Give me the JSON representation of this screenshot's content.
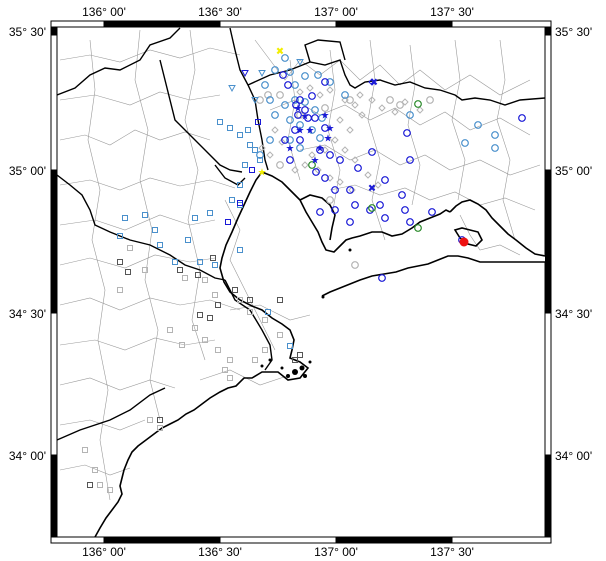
{
  "map": {
    "top_labels": [
      "136° 00'",
      "136° 30'",
      "137° 00'",
      "137° 30'"
    ],
    "bottom_labels": [
      "136° 00'",
      "136° 30'",
      "137° 00'",
      "137° 30'"
    ],
    "left_labels": [
      "35° 30'",
      "35° 00'",
      "34° 30'",
      "34° 00'"
    ],
    "right_labels": [
      "35° 30'",
      "35° 00'",
      "34° 30'",
      "34° 00'"
    ],
    "colors": {
      "coast": "#000000",
      "boundary": "#9a9a9a",
      "blue": "#1a1ad6",
      "light_blue": "#4a90cc",
      "gray": "#b4b4b4",
      "dark_gray": "#555555",
      "green": "#2a8a2a",
      "yellow": "#f2ee00",
      "red": "#ee1111"
    },
    "symbol_types": [
      "circle",
      "square",
      "diamond",
      "star",
      "triangle-down",
      "x-mark",
      "filled-circle"
    ]
  }
}
